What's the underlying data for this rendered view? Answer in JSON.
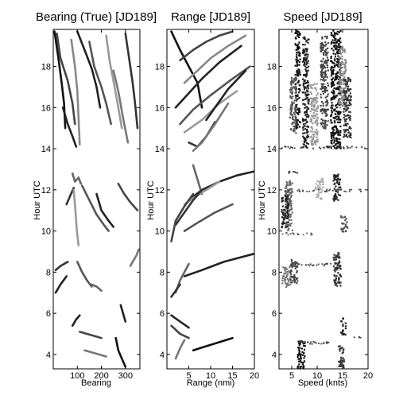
{
  "chart_data": [
    {
      "type": "line",
      "title": "Bearing (True) [JD189]",
      "xlabel": "Bearing",
      "ylabel": "Hour UTC",
      "xlim": [
        0,
        360
      ],
      "ylim": [
        3.3,
        19.8
      ],
      "xticks": [
        100,
        200,
        300
      ],
      "yticks": [
        4,
        6,
        8,
        10,
        12,
        14,
        16,
        18
      ],
      "series": [
        {
          "color": "#111111",
          "x": [
            5,
            20,
            35,
            45,
            50
          ],
          "y": [
            19.7,
            18.5,
            17.2,
            16.2,
            15.0
          ]
        },
        {
          "color": "#444444",
          "x": [
            15,
            30,
            60,
            80,
            90
          ],
          "y": [
            19.6,
            18.4,
            17.3,
            16.2,
            15.2
          ]
        },
        {
          "color": "#888888",
          "x": [
            75,
            90,
            100,
            105,
            110
          ],
          "y": [
            19.3,
            18.0,
            16.8,
            15.5,
            14.2
          ]
        },
        {
          "color": "#222222",
          "x": [
            100,
            130,
            160,
            180,
            195
          ],
          "y": [
            19.7,
            18.8,
            17.9,
            17.0,
            16.0
          ]
        },
        {
          "color": "#555555",
          "x": [
            150,
            170,
            200,
            220,
            240
          ],
          "y": [
            19.2,
            18.0,
            17.0,
            16.2,
            15.2
          ]
        },
        {
          "color": "#999999",
          "x": [
            220,
            235,
            255,
            270,
            285
          ],
          "y": [
            19.5,
            18.2,
            17.0,
            16.0,
            15.0
          ]
        },
        {
          "color": "#333333",
          "x": [
            300,
            315,
            330,
            340,
            350
          ],
          "y": [
            19.6,
            18.4,
            17.2,
            16.2,
            15.0
          ]
        },
        {
          "color": "#777777",
          "x": [
            250,
            270,
            290,
            310
          ],
          "y": [
            17.8,
            16.8,
            15.5,
            14.3
          ]
        },
        {
          "color": "#222222",
          "x": [
            40,
            60,
            80,
            95
          ],
          "y": [
            16.0,
            15.2,
            14.6,
            14.1
          ]
        },
        {
          "color": "#666666",
          "x": [
            80,
            90,
            105,
            115
          ],
          "y": [
            12.8,
            12.4,
            12.6,
            12.3
          ]
        },
        {
          "color": "#333333",
          "x": [
            55,
            70,
            85
          ],
          "y": [
            11.3,
            11.7,
            12.1
          ]
        },
        {
          "color": "#999999",
          "x": [
            85,
            92,
            98,
            105
          ],
          "y": [
            12.0,
            11.0,
            10.0,
            9.3
          ]
        },
        {
          "color": "#555555",
          "x": [
            120,
            150,
            180,
            210,
            230
          ],
          "y": [
            12.2,
            11.5,
            10.8,
            10.3,
            10.0
          ]
        },
        {
          "color": "#222222",
          "x": [
            180,
            200,
            230,
            250
          ],
          "y": [
            11.8,
            11.0,
            10.5,
            10.2
          ]
        },
        {
          "color": "#444444",
          "x": [
            270,
            295,
            320,
            350
          ],
          "y": [
            12.3,
            11.8,
            11.4,
            11.0
          ]
        },
        {
          "color": "#777777",
          "x": [
            320,
            330,
            345,
            355
          ],
          "y": [
            8.3,
            8.5,
            8.8,
            9.1
          ]
        },
        {
          "color": "#333333",
          "x": [
            10,
            30,
            60
          ],
          "y": [
            8.1,
            8.3,
            8.5
          ]
        },
        {
          "color": "#555555",
          "x": [
            100,
            120,
            140,
            160
          ],
          "y": [
            8.5,
            8.0,
            7.6,
            7.3
          ]
        },
        {
          "color": "#222222",
          "x": [
            10,
            30,
            55
          ],
          "y": [
            7.0,
            7.4,
            7.8
          ]
        },
        {
          "color": "#666666",
          "x": [
            160,
            180,
            200
          ],
          "y": [
            7.4,
            7.3,
            7.1
          ]
        },
        {
          "color": "#222222",
          "x": [
            80,
            95,
            110
          ],
          "y": [
            5.4,
            5.7,
            5.9
          ]
        },
        {
          "color": "#444444",
          "x": [
            110,
            140,
            170,
            200
          ],
          "y": [
            5.1,
            5.0,
            4.9,
            4.8
          ]
        },
        {
          "color": "#777777",
          "x": [
            130,
            160,
            190,
            220
          ],
          "y": [
            4.2,
            4.1,
            4.0,
            3.9
          ]
        },
        {
          "color": "#111111",
          "x": [
            260,
            270,
            285,
            300
          ],
          "y": [
            4.8,
            4.2,
            3.8,
            3.4
          ]
        },
        {
          "color": "#222222",
          "x": [
            280,
            290,
            300
          ],
          "y": [
            6.4,
            6.0,
            5.6
          ]
        }
      ]
    },
    {
      "type": "line",
      "title": "Range [JD189]",
      "xlabel": "Range (nmi)",
      "ylabel": "Hour UTC",
      "xlim": [
        0,
        20
      ],
      "ylim": [
        3.3,
        19.8
      ],
      "xticks": [
        5,
        10,
        15,
        20
      ],
      "yticks": [
        4,
        6,
        8,
        10,
        12,
        14,
        16,
        18
      ],
      "series": [
        {
          "color": "#111111",
          "x": [
            1,
            3,
            5,
            7,
            8
          ],
          "y": [
            19.7,
            18.8,
            18.0,
            17.2,
            16.0
          ]
        },
        {
          "color": "#444444",
          "x": [
            3,
            6,
            9,
            12,
            15
          ],
          "y": [
            18.3,
            18.8,
            19.2,
            19.5,
            19.7
          ]
        },
        {
          "color": "#888888",
          "x": [
            4,
            7,
            10,
            14,
            18
          ],
          "y": [
            17.2,
            17.8,
            18.4,
            19.0,
            19.5
          ]
        },
        {
          "color": "#222222",
          "x": [
            2,
            5,
            8,
            12,
            17
          ],
          "y": [
            16.0,
            16.7,
            17.4,
            18.2,
            19.0
          ]
        },
        {
          "color": "#555555",
          "x": [
            3,
            6,
            10,
            15,
            19
          ],
          "y": [
            15.2,
            15.9,
            16.6,
            17.4,
            18.0
          ]
        },
        {
          "color": "#999999",
          "x": [
            4,
            8,
            12,
            16
          ],
          "y": [
            14.8,
            15.4,
            16.2,
            16.8
          ]
        },
        {
          "color": "#333333",
          "x": [
            5,
            7,
            9,
            11
          ],
          "y": [
            14.3,
            14.1,
            14.6,
            15.3
          ]
        },
        {
          "color": "#777777",
          "x": [
            6,
            8,
            11,
            14
          ],
          "y": [
            13.9,
            14.3,
            15.2,
            16.2
          ]
        },
        {
          "color": "#222222",
          "x": [
            9,
            11,
            14,
            18
          ],
          "y": [
            15.4,
            16.0,
            16.9,
            17.8
          ]
        },
        {
          "color": "#666666",
          "x": [
            6,
            7,
            8
          ],
          "y": [
            13.2,
            12.5,
            11.8
          ]
        },
        {
          "color": "#222222",
          "x": [
            5,
            8,
            12,
            16,
            20
          ],
          "y": [
            11.5,
            12.0,
            12.4,
            12.7,
            12.9
          ]
        },
        {
          "color": "#999999",
          "x": [
            4,
            6,
            9,
            12
          ],
          "y": [
            11.3,
            11.6,
            12.0,
            12.4
          ]
        },
        {
          "color": "#333333",
          "x": [
            2,
            4,
            6,
            8
          ],
          "y": [
            10.3,
            10.9,
            11.5,
            12.0
          ]
        },
        {
          "color": "#555555",
          "x": [
            4,
            7,
            11,
            15
          ],
          "y": [
            10.0,
            10.4,
            10.9,
            11.3
          ]
        },
        {
          "color": "#444444",
          "x": [
            1,
            2,
            4,
            6
          ],
          "y": [
            9.5,
            10.5,
            11.2,
            11.8
          ]
        },
        {
          "color": "#222222",
          "x": [
            4,
            8,
            13,
            20
          ],
          "y": [
            7.8,
            8.1,
            8.5,
            8.9
          ]
        },
        {
          "color": "#666666",
          "x": [
            2,
            3,
            4,
            5
          ],
          "y": [
            7.0,
            7.6,
            8.0,
            8.4
          ]
        },
        {
          "color": "#333333",
          "x": [
            1,
            2,
            3
          ],
          "y": [
            6.8,
            7.1,
            7.4
          ]
        },
        {
          "color": "#222222",
          "x": [
            1,
            3,
            5
          ],
          "y": [
            5.9,
            5.6,
            5.3
          ]
        },
        {
          "color": "#444444",
          "x": [
            1,
            3,
            5
          ],
          "y": [
            5.4,
            5.0,
            4.8
          ]
        },
        {
          "color": "#111111",
          "x": [
            6,
            9,
            12,
            15
          ],
          "y": [
            4.2,
            4.4,
            4.6,
            4.8
          ]
        },
        {
          "color": "#777777",
          "x": [
            2,
            3,
            4
          ],
          "y": [
            3.8,
            4.3,
            4.7
          ]
        }
      ]
    },
    {
      "type": "scatter",
      "title": "Speed [JD189]",
      "xlabel": "Speed (knts)",
      "ylabel": "Hour UTC",
      "xlim": [
        2.5,
        20
      ],
      "ylim": [
        3.3,
        19.8
      ],
      "xticks": [
        5,
        10,
        15,
        20
      ],
      "yticks": [
        4,
        6,
        8,
        10,
        12,
        14,
        16,
        18
      ],
      "clusters": [
        {
          "color": "#111111",
          "x": [
            5.5,
            6.5
          ],
          "y": [
            15.0,
            19.8
          ]
        },
        {
          "color": "#555555",
          "x": [
            4.5,
            5.8
          ],
          "y": [
            14.8,
            17.5
          ]
        },
        {
          "color": "#222222",
          "x": [
            7.0,
            8.2
          ],
          "y": [
            14.0,
            19.5
          ]
        },
        {
          "color": "#999999",
          "x": [
            8.5,
            10.0
          ],
          "y": [
            14.2,
            17.2
          ]
        },
        {
          "color": "#444444",
          "x": [
            10.5,
            12.0
          ],
          "y": [
            15.0,
            19.5
          ]
        },
        {
          "color": "#111111",
          "x": [
            12.5,
            14.5
          ],
          "y": [
            14.0,
            19.8
          ]
        },
        {
          "color": "#888888",
          "x": [
            14.0,
            15.5
          ],
          "y": [
            16.0,
            19.0
          ]
        },
        {
          "color": "#333333",
          "x": [
            15.0,
            16.5
          ],
          "y": [
            14.5,
            17.5
          ]
        },
        {
          "color": "#666666",
          "x": [
            3.5,
            5.0
          ],
          "y": [
            10.0,
            12.5
          ]
        },
        {
          "color": "#222222",
          "x": [
            2.8,
            4.2
          ],
          "y": [
            10.2,
            11.8
          ]
        },
        {
          "color": "#aaaaaa",
          "x": [
            9.5,
            11.0
          ],
          "y": [
            11.6,
            12.6
          ]
        },
        {
          "color": "#222222",
          "x": [
            13.0,
            14.5
          ],
          "y": [
            11.5,
            12.8
          ]
        },
        {
          "color": "#555555",
          "x": [
            14.5,
            15.8
          ],
          "y": [
            10.0,
            10.8
          ]
        },
        {
          "color": "#444444",
          "x": [
            4.5,
            6.0
          ],
          "y": [
            7.5,
            8.7
          ]
        },
        {
          "color": "#777777",
          "x": [
            3.0,
            4.5
          ],
          "y": [
            7.3,
            8.3
          ]
        },
        {
          "color": "#333333",
          "x": [
            13.0,
            14.5
          ],
          "y": [
            7.3,
            9.0
          ]
        },
        {
          "color": "#222222",
          "x": [
            14.5,
            15.5
          ],
          "y": [
            5.0,
            5.8
          ]
        },
        {
          "color": "#111111",
          "x": [
            6.0,
            7.5
          ],
          "y": [
            3.3,
            4.7
          ]
        },
        {
          "color": "#333333",
          "x": [
            14.0,
            15.2
          ],
          "y": [
            3.4,
            4.5
          ]
        }
      ],
      "bands": [
        {
          "color": "#333333",
          "y": 14.1,
          "x": [
            2.8,
            19.5
          ]
        },
        {
          "color": "#333333",
          "y": 12.9,
          "x": [
            2.8,
            6.0
          ]
        },
        {
          "color": "#444444",
          "y": 12.0,
          "x": [
            2.8,
            19.0
          ]
        },
        {
          "color": "#555555",
          "y": 9.9,
          "x": [
            2.8,
            9.0
          ]
        },
        {
          "color": "#444444",
          "y": 8.4,
          "x": [
            2.8,
            14.0
          ]
        },
        {
          "color": "#333333",
          "y": 4.6,
          "x": [
            6.0,
            13.0
          ]
        },
        {
          "color": "#333333",
          "y": 4.9,
          "x": [
            17.0,
            18.5
          ]
        }
      ]
    }
  ]
}
